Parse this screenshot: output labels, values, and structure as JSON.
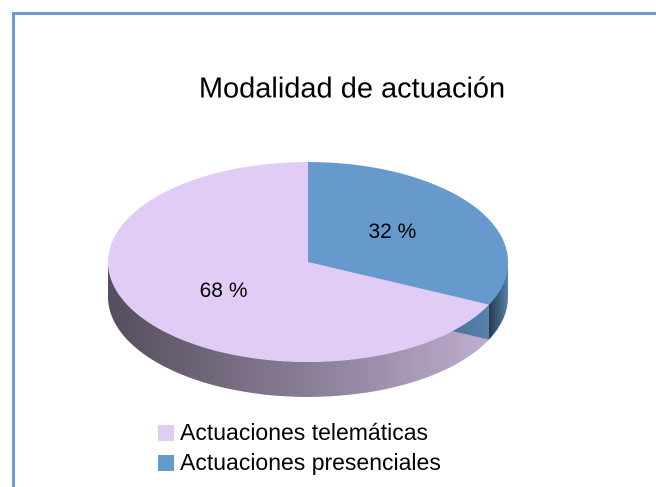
{
  "chart_data": {
    "type": "pie",
    "title": "Modalidad de actuación",
    "categories": [
      "Actuaciones telemáticas",
      "Actuaciones presenciales"
    ],
    "values": [
      68,
      32
    ],
    "value_labels": [
      "68 %",
      "32 %"
    ],
    "colors": [
      "#e0ccf4",
      "#6699cc"
    ]
  }
}
